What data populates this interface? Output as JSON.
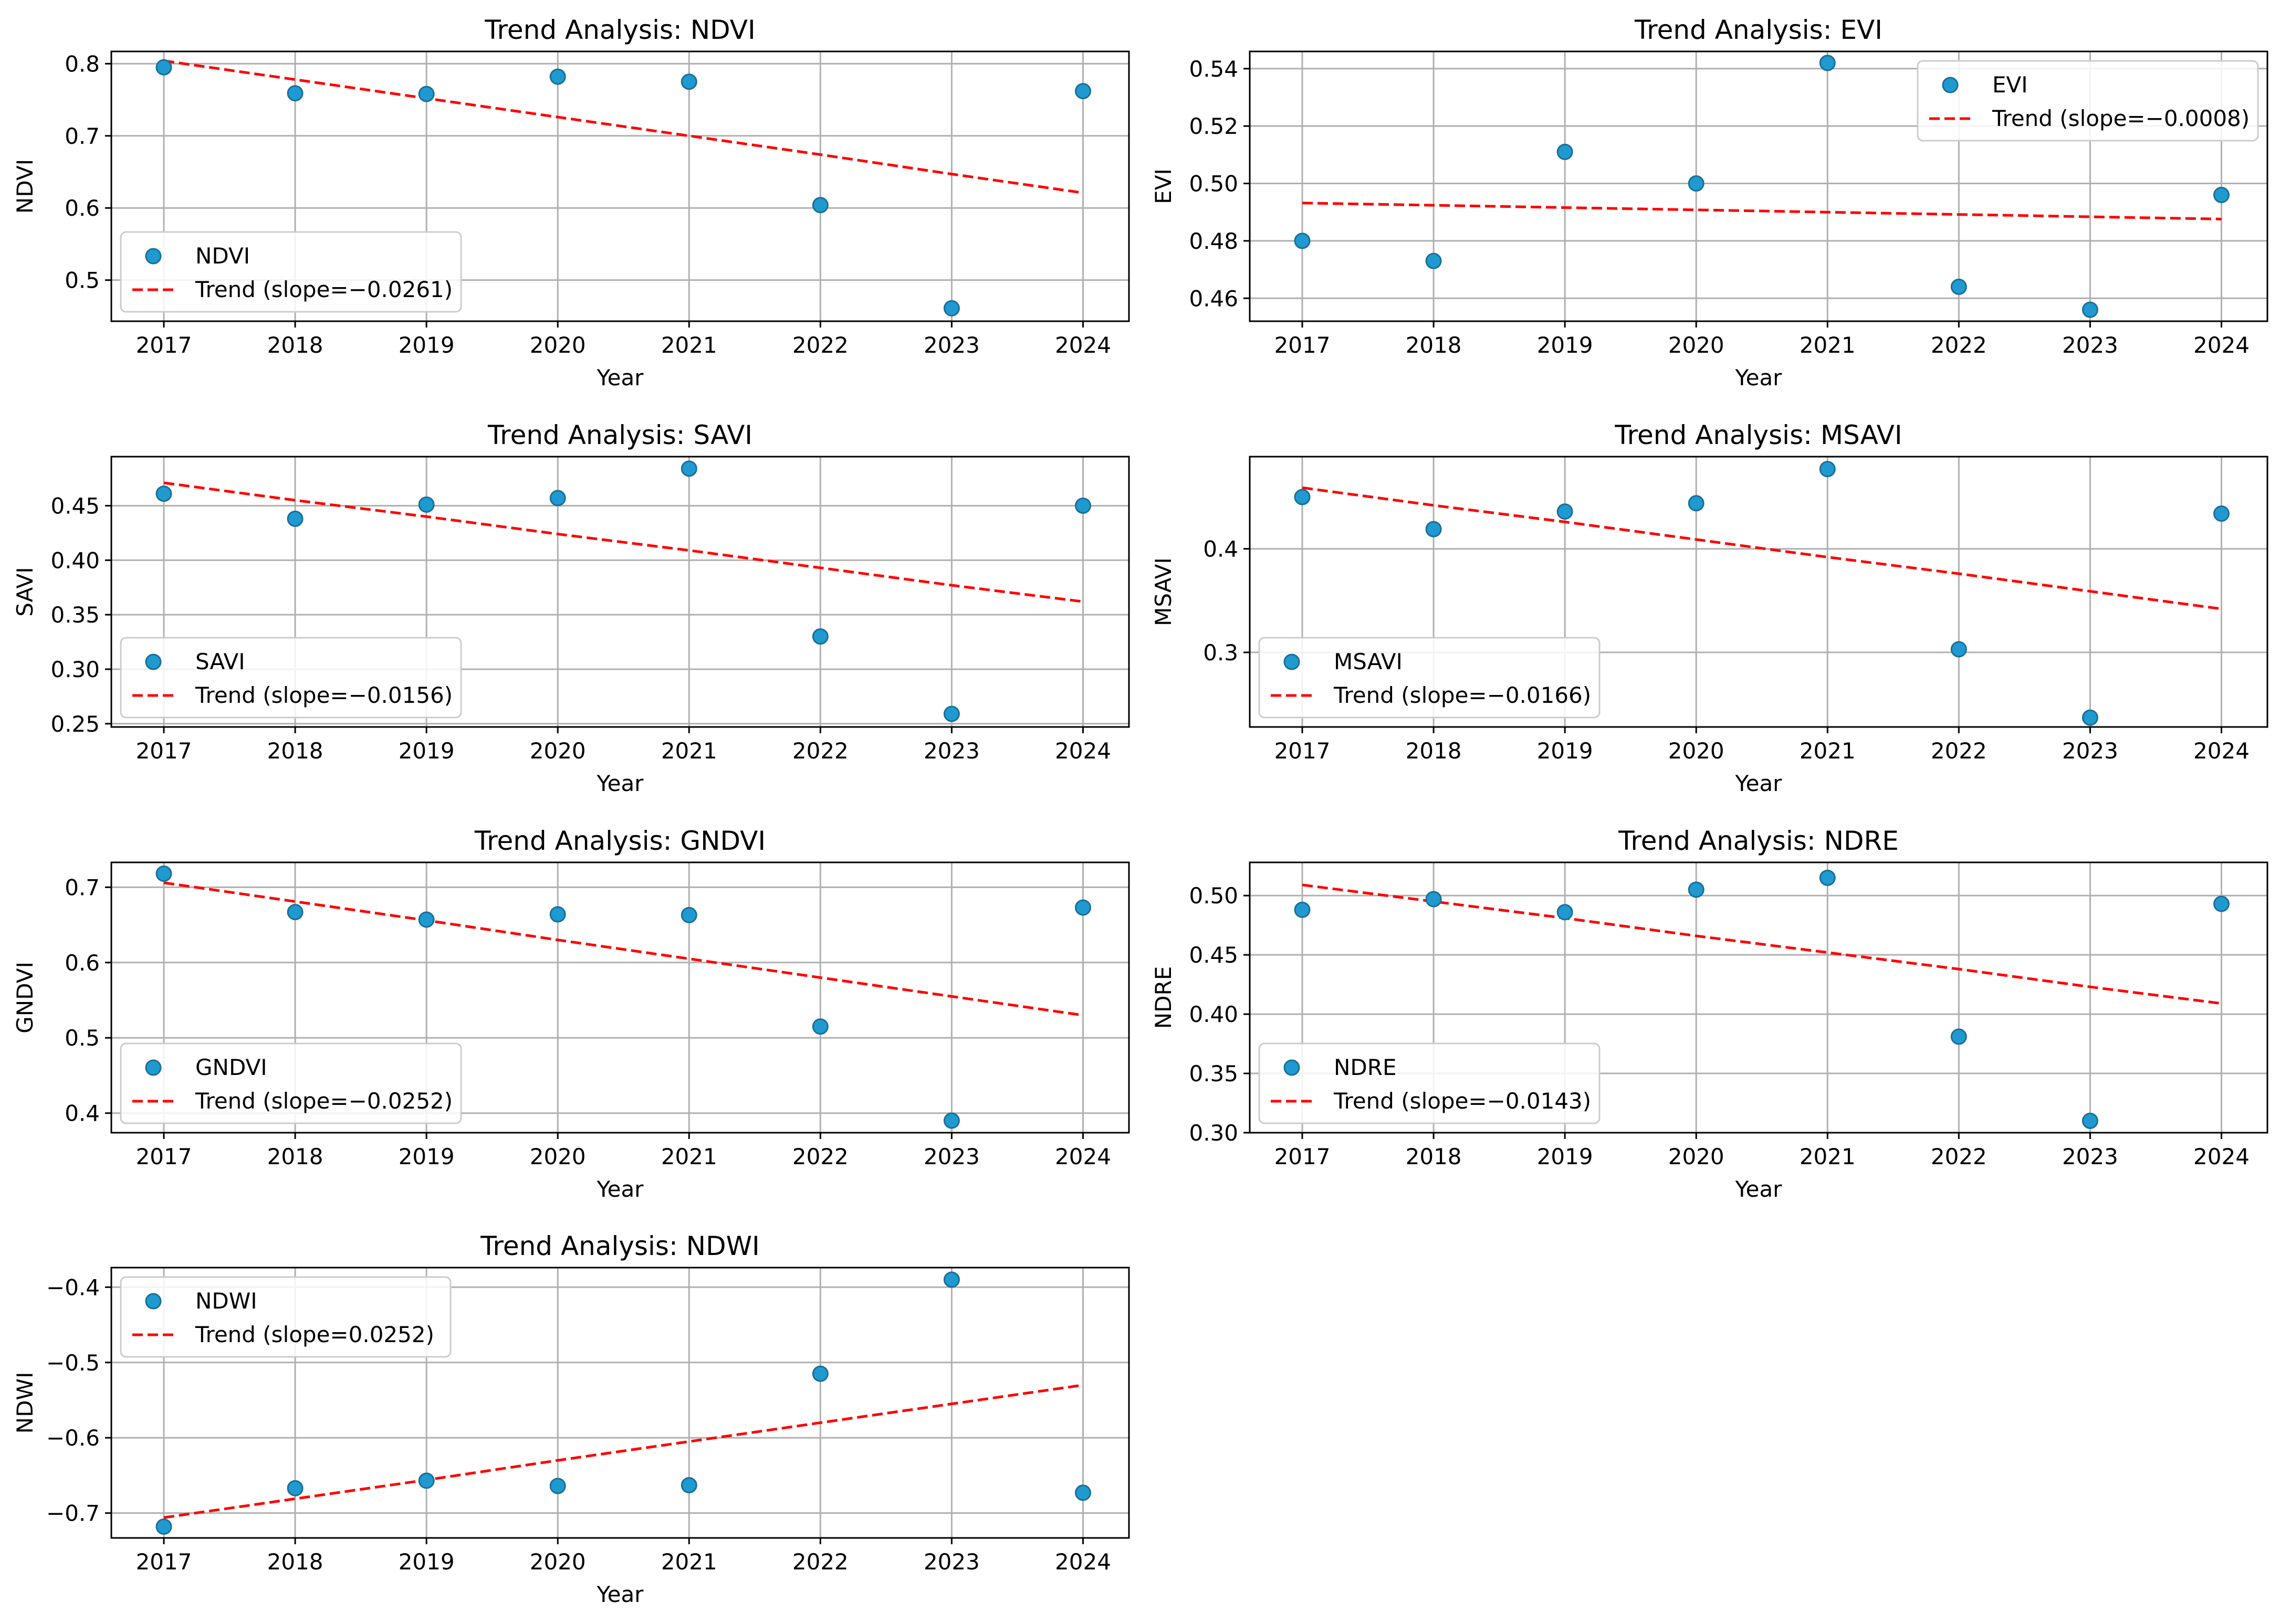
{
  "colors": {
    "point": "#1f9ad1",
    "point_edge": "#1a6f96",
    "trend": "#ff0000",
    "grid": "#b0b0b0",
    "axis": "#000000"
  },
  "chart_data": [
    {
      "type": "scatter",
      "title": "Trend Analysis: NDVI",
      "xlabel": "Year",
      "ylabel": "NDVI",
      "x": [
        2017,
        2018,
        2019,
        2020,
        2021,
        2022,
        2023,
        2024
      ],
      "xlim": [
        2016.6,
        2024.35
      ],
      "ylim": [
        0.443,
        0.817
      ],
      "yticks": [
        0.5,
        0.6,
        0.7,
        0.8
      ],
      "ytick_labels": [
        "0.5",
        "0.6",
        "0.7",
        "0.8"
      ],
      "grid": true,
      "legend_position": "lower left",
      "series": [
        {
          "name": "NDVI",
          "kind": "scatter",
          "values": [
            0.795,
            0.759,
            0.758,
            0.782,
            0.775,
            0.604,
            0.461,
            0.762
          ]
        },
        {
          "name": "Trend (slope=−0.0261)",
          "kind": "line",
          "style": "dashed",
          "values": [
            0.804,
            0.778,
            0.752,
            0.726,
            0.7,
            0.674,
            0.647,
            0.621
          ]
        }
      ]
    },
    {
      "type": "scatter",
      "title": "Trend Analysis: EVI",
      "xlabel": "Year",
      "ylabel": "EVI",
      "x": [
        2017,
        2018,
        2019,
        2020,
        2021,
        2022,
        2023,
        2024
      ],
      "xlim": [
        2016.6,
        2024.35
      ],
      "ylim": [
        0.452,
        0.546
      ],
      "yticks": [
        0.46,
        0.48,
        0.5,
        0.52,
        0.54
      ],
      "ytick_labels": [
        "0.46",
        "0.48",
        "0.50",
        "0.52",
        "0.54"
      ],
      "grid": true,
      "legend_position": "upper right",
      "series": [
        {
          "name": "EVI",
          "kind": "scatter",
          "values": [
            0.48,
            0.473,
            0.511,
            0.5,
            0.542,
            0.464,
            0.456,
            0.496
          ]
        },
        {
          "name": "Trend (slope=−0.0008)",
          "kind": "line",
          "style": "dashed",
          "values": [
            0.4932,
            0.4924,
            0.4916,
            0.4908,
            0.49,
            0.4892,
            0.4884,
            0.4876
          ]
        }
      ]
    },
    {
      "type": "scatter",
      "title": "Trend Analysis: SAVI",
      "xlabel": "Year",
      "ylabel": "SAVI",
      "x": [
        2017,
        2018,
        2019,
        2020,
        2021,
        2022,
        2023,
        2024
      ],
      "xlim": [
        2016.6,
        2024.35
      ],
      "ylim": [
        0.247,
        0.495
      ],
      "yticks": [
        0.25,
        0.3,
        0.35,
        0.4,
        0.45
      ],
      "ytick_labels": [
        "0.25",
        "0.30",
        "0.35",
        "0.40",
        "0.45"
      ],
      "grid": true,
      "legend_position": "lower left",
      "series": [
        {
          "name": "SAVI",
          "kind": "scatter",
          "values": [
            0.461,
            0.438,
            0.451,
            0.457,
            0.484,
            0.33,
            0.259,
            0.45
          ]
        },
        {
          "name": "Trend (slope=−0.0156)",
          "kind": "line",
          "style": "dashed",
          "values": [
            0.471,
            0.455,
            0.44,
            0.424,
            0.409,
            0.393,
            0.377,
            0.362
          ]
        }
      ]
    },
    {
      "type": "scatter",
      "title": "Trend Analysis: MSAVI",
      "xlabel": "Year",
      "ylabel": "MSAVI",
      "x": [
        2017,
        2018,
        2019,
        2020,
        2021,
        2022,
        2023,
        2024
      ],
      "xlim": [
        2016.6,
        2024.35
      ],
      "ylim": [
        0.228,
        0.489
      ],
      "yticks": [
        0.3,
        0.4
      ],
      "ytick_labels": [
        "0.3",
        "0.4"
      ],
      "grid": true,
      "legend_position": "lower left",
      "series": [
        {
          "name": "MSAVI",
          "kind": "scatter",
          "values": [
            0.45,
            0.419,
            0.436,
            0.444,
            0.477,
            0.303,
            0.237,
            0.434
          ]
        },
        {
          "name": "Trend (slope=−0.0166)",
          "kind": "line",
          "style": "dashed",
          "values": [
            0.459,
            0.442,
            0.426,
            0.409,
            0.392,
            0.376,
            0.359,
            0.342
          ]
        }
      ]
    },
    {
      "type": "scatter",
      "title": "Trend Analysis: GNDVI",
      "xlabel": "Year",
      "ylabel": "GNDVI",
      "x": [
        2017,
        2018,
        2019,
        2020,
        2021,
        2022,
        2023,
        2024
      ],
      "xlim": [
        2016.6,
        2024.35
      ],
      "ylim": [
        0.374,
        0.733
      ],
      "yticks": [
        0.4,
        0.5,
        0.6,
        0.7
      ],
      "ytick_labels": [
        "0.4",
        "0.5",
        "0.6",
        "0.7"
      ],
      "grid": true,
      "legend_position": "lower left",
      "series": [
        {
          "name": "GNDVI",
          "kind": "scatter",
          "values": [
            0.718,
            0.667,
            0.657,
            0.664,
            0.663,
            0.515,
            0.39,
            0.673
          ]
        },
        {
          "name": "Trend (slope=−0.0252)",
          "kind": "line",
          "style": "dashed",
          "values": [
            0.706,
            0.681,
            0.656,
            0.63,
            0.605,
            0.58,
            0.555,
            0.53
          ]
        }
      ]
    },
    {
      "type": "scatter",
      "title": "Trend Analysis: NDRE",
      "xlabel": "Year",
      "ylabel": "NDRE",
      "x": [
        2017,
        2018,
        2019,
        2020,
        2021,
        2022,
        2023,
        2024
      ],
      "xlim": [
        2016.6,
        2024.35
      ],
      "ylim": [
        0.3,
        0.528
      ],
      "yticks": [
        0.3,
        0.35,
        0.4,
        0.45,
        0.5
      ],
      "ytick_labels": [
        "0.30",
        "0.35",
        "0.40",
        "0.45",
        "0.50"
      ],
      "grid": true,
      "legend_position": "lower left",
      "series": [
        {
          "name": "NDRE",
          "kind": "scatter",
          "values": [
            0.488,
            0.497,
            0.486,
            0.505,
            0.515,
            0.381,
            0.31,
            0.493
          ]
        },
        {
          "name": "Trend (slope=−0.0143)",
          "kind": "line",
          "style": "dashed",
          "values": [
            0.509,
            0.495,
            0.481,
            0.466,
            0.452,
            0.438,
            0.423,
            0.409
          ]
        }
      ]
    },
    {
      "type": "scatter",
      "title": "Trend Analysis: NDWI",
      "xlabel": "Year",
      "ylabel": "NDWI",
      "x": [
        2017,
        2018,
        2019,
        2020,
        2021,
        2022,
        2023,
        2024
      ],
      "xlim": [
        2016.6,
        2024.35
      ],
      "ylim": [
        -0.733,
        -0.374
      ],
      "yticks": [
        -0.7,
        -0.6,
        -0.5,
        -0.4
      ],
      "ytick_labels": [
        "−0.7",
        "−0.6",
        "−0.5",
        "−0.4"
      ],
      "grid": true,
      "legend_position": "upper left",
      "series": [
        {
          "name": "NDWI",
          "kind": "scatter",
          "values": [
            -0.718,
            -0.667,
            -0.657,
            -0.664,
            -0.663,
            -0.515,
            -0.39,
            -0.673
          ]
        },
        {
          "name": "Trend (slope=0.0252)",
          "kind": "line",
          "style": "dashed",
          "values": [
            -0.706,
            -0.681,
            -0.656,
            -0.63,
            -0.605,
            -0.58,
            -0.555,
            -0.53
          ]
        }
      ]
    }
  ]
}
